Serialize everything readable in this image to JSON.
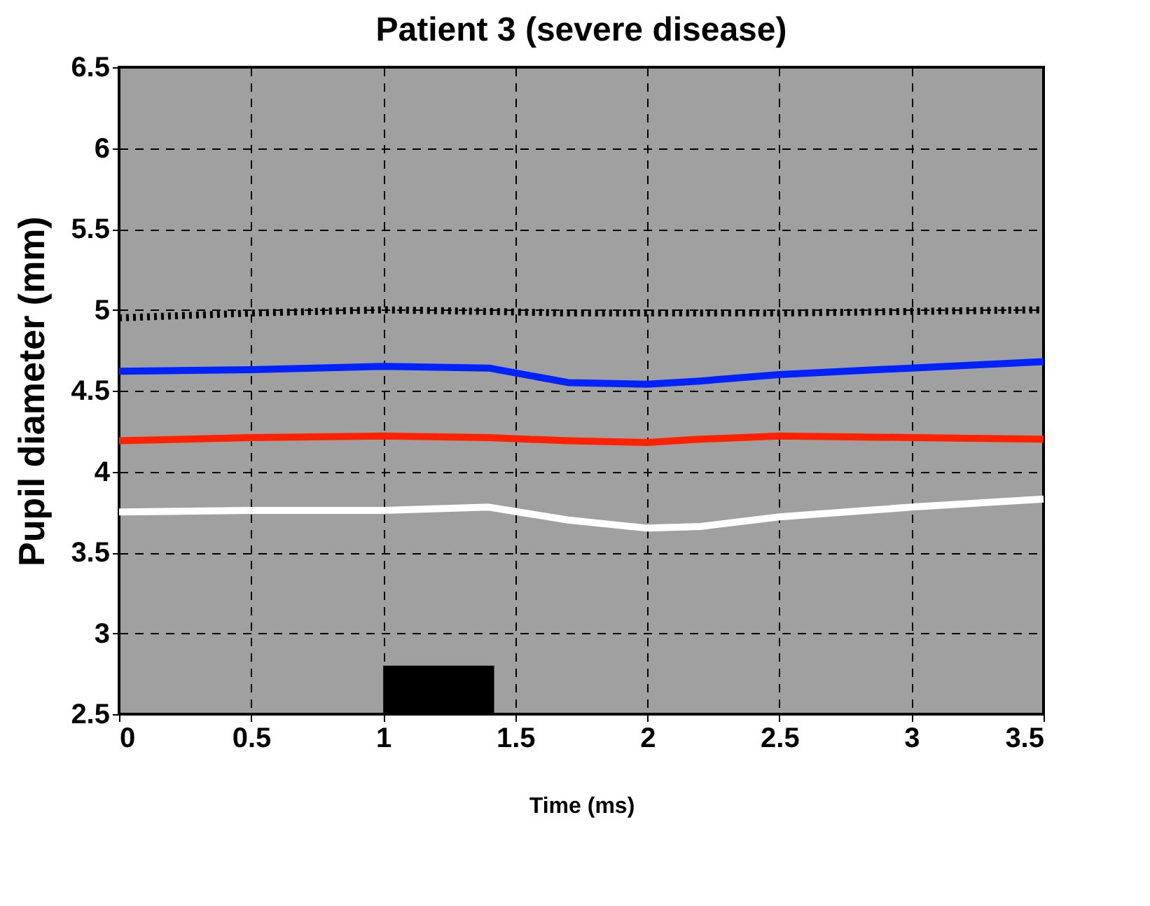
{
  "chart_data": {
    "type": "line",
    "title": "Patient 3 (severe disease)",
    "xlabel": "Time (ms)",
    "ylabel": "Pupil diameter (mm)",
    "x": [
      0,
      0.5,
      1,
      1.4,
      1.7,
      2,
      2.2,
      2.5,
      3,
      3.5
    ],
    "series": [
      {
        "color": "#000000",
        "line_style": "dotted",
        "values": [
          4.95,
          4.98,
          5.0,
          4.99,
          4.98,
          4.98,
          4.98,
          4.98,
          4.99,
          5.0
        ]
      },
      {
        "color": "#0022ff",
        "line_style": "solid",
        "values": [
          4.62,
          4.63,
          4.65,
          4.64,
          4.55,
          4.54,
          4.56,
          4.6,
          4.64,
          4.68
        ]
      },
      {
        "color": "#ff2200",
        "line_style": "solid",
        "values": [
          4.19,
          4.21,
          4.22,
          4.21,
          4.19,
          4.18,
          4.2,
          4.22,
          4.21,
          4.2
        ]
      },
      {
        "color": "#ffffff",
        "line_style": "solid",
        "values": [
          3.75,
          3.76,
          3.76,
          3.78,
          3.7,
          3.65,
          3.66,
          3.72,
          3.78,
          3.83
        ]
      },
      {
        "type": "area",
        "color": "#000000",
        "x": [
          1,
          1.42
        ],
        "values": [
          2.8,
          2.8
        ]
      }
    ],
    "xlim": [
      0,
      3.5
    ],
    "xticks": [
      0,
      0.5,
      1,
      1.5,
      2,
      2.5,
      3,
      3.5
    ],
    "ylim": [
      2.5,
      6.5
    ],
    "yticks": [
      2.5,
      3,
      3.5,
      4,
      4.5,
      5,
      5.5,
      6,
      6.5
    ],
    "grid": true,
    "marker": "none"
  }
}
